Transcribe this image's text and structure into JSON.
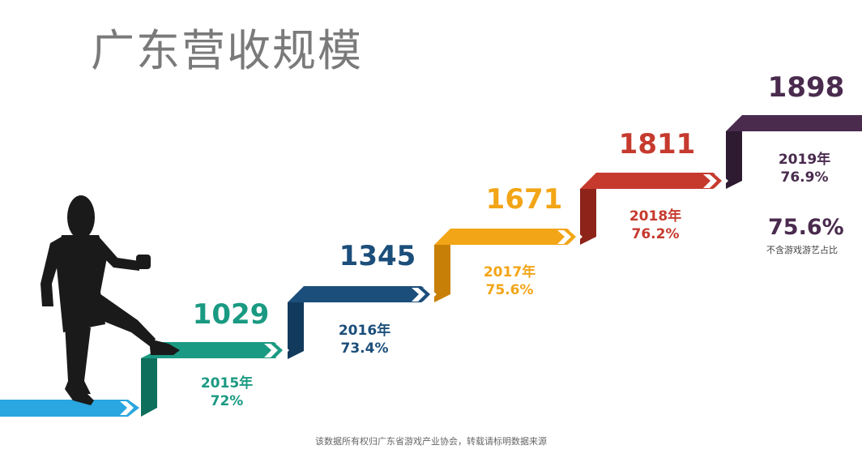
{
  "title": "广东营收规模",
  "footer": "该数据所有权归广东省游戏产业协会，转载请标明数据来源",
  "note": {
    "value": "75.6%",
    "label": "不含游戏游艺占比"
  },
  "colors": {
    "2015": "#1a9a82",
    "2016": "#1b4e7a",
    "2017": "#f2a516",
    "2018": "#c63a2e",
    "2019": "#4a2b4e",
    "base": "#2aa6e0"
  },
  "chart_data": {
    "type": "bar",
    "categories": [
      "2015年",
      "2016年",
      "2017年",
      "2018年",
      "2019年"
    ],
    "values": [
      1029,
      1345,
      1671,
      1811,
      1898
    ],
    "shares": [
      "72%",
      "73.4%",
      "75.6%",
      "76.2%",
      "76.9%"
    ],
    "title": "广东营收规模"
  }
}
